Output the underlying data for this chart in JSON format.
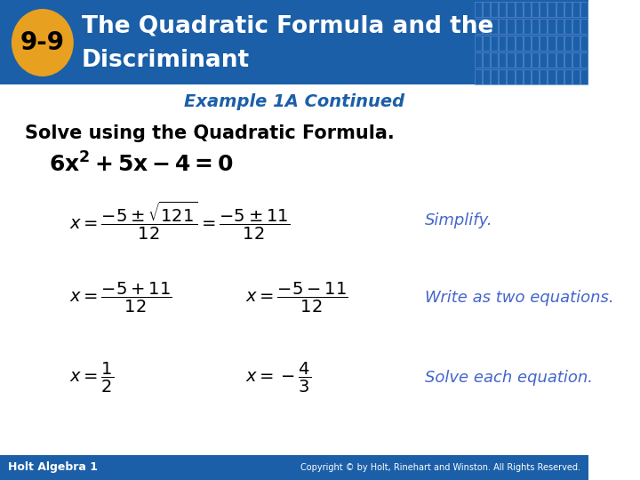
{
  "header_bg_color": "#1B5FA8",
  "header_text_color": "#FFFFFF",
  "header_title": "The Quadratic Formula and the\nDiscriminant",
  "badge_color": "#E8A020",
  "badge_text": "9-9",
  "badge_text_color": "#000000",
  "example_title": "Example 1A Continued",
  "example_title_color": "#1B5FA8",
  "body_bg_color": "#FFFFFF",
  "solve_text": "Solve using the Quadratic Formula.",
  "solve_text_color": "#000000",
  "equation_color": "#000000",
  "red_color": "#CC0000",
  "blue_italic_color": "#4466CC",
  "footer_bg_color": "#1B5FA8",
  "footer_left": "Holt Algebra 1",
  "footer_right": "Copyright © by Holt, Rinehart and Winston. All Rights Reserved.",
  "footer_text_color": "#FFFFFF",
  "grid_color": "#5588CC"
}
